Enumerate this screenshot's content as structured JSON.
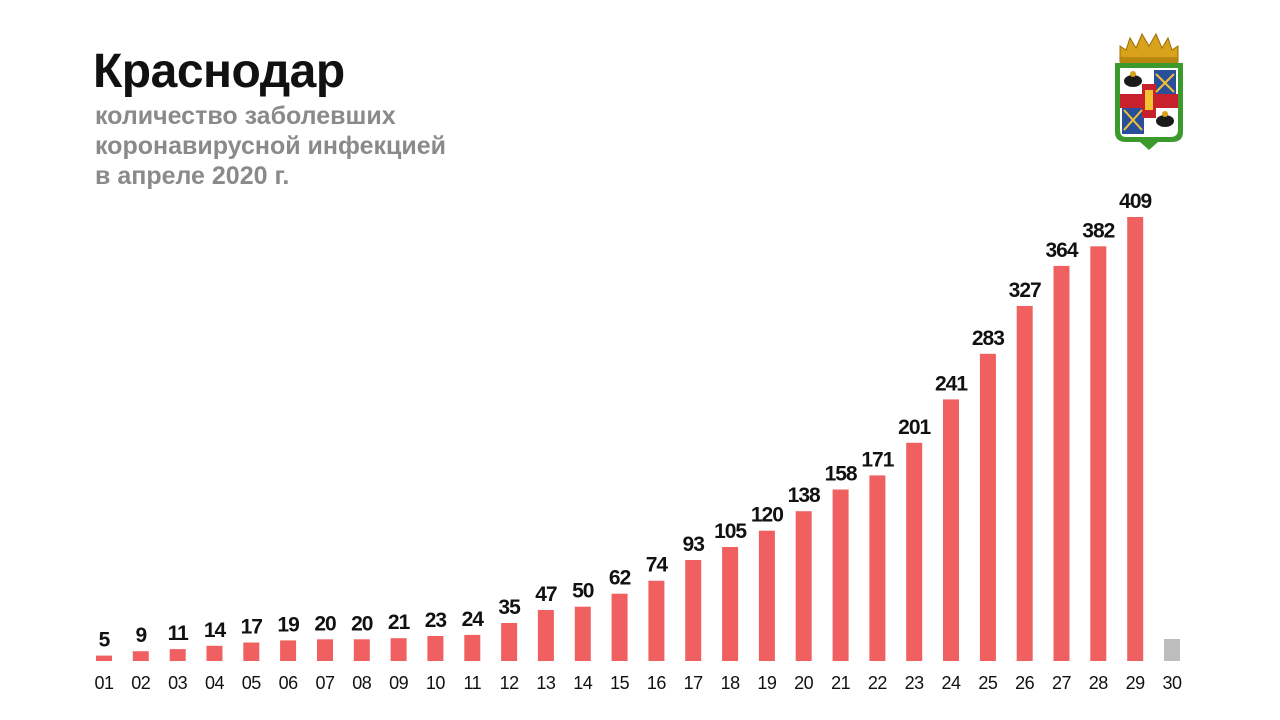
{
  "header": {
    "title": "Краснодар",
    "subtitle_lines": [
      "количество заболевших",
      "коронавирусной инфекцией",
      "в апреле 2020 г."
    ]
  },
  "emblem": {
    "icon": "krasnodar-coat-of-arms-icon",
    "colors": {
      "crown": "#d8a21a",
      "border": "#3c9a2d",
      "field_red": "#c8202c",
      "field_blue": "#2a4f9a"
    }
  },
  "chart_data": {
    "type": "bar",
    "categories": [
      "01",
      "02",
      "03",
      "04",
      "05",
      "06",
      "07",
      "08",
      "09",
      "10",
      "11",
      "12",
      "13",
      "14",
      "15",
      "16",
      "17",
      "18",
      "19",
      "20",
      "21",
      "22",
      "23",
      "24",
      "25",
      "26",
      "27",
      "28",
      "29",
      "30"
    ],
    "values": [
      5,
      9,
      11,
      14,
      17,
      19,
      20,
      20,
      21,
      23,
      24,
      35,
      47,
      50,
      62,
      74,
      93,
      105,
      120,
      138,
      158,
      171,
      201,
      241,
      283,
      327,
      364,
      382,
      409,
      null
    ],
    "value_labels": [
      "5",
      "9",
      "11",
      "14",
      "17",
      "19",
      "20",
      "20",
      "21",
      "23",
      "24",
      "35",
      "47",
      "50",
      "62",
      "74",
      "93",
      "105",
      "120",
      "138",
      "158",
      "171",
      "201",
      "241",
      "283",
      "327",
      "364",
      "382",
      "409",
      ""
    ],
    "colors": {
      "bar": "#f06060",
      "pending_bar": "#bdbdbd"
    },
    "grid": false,
    "legend": "none",
    "ylim": [
      0,
      409
    ]
  }
}
